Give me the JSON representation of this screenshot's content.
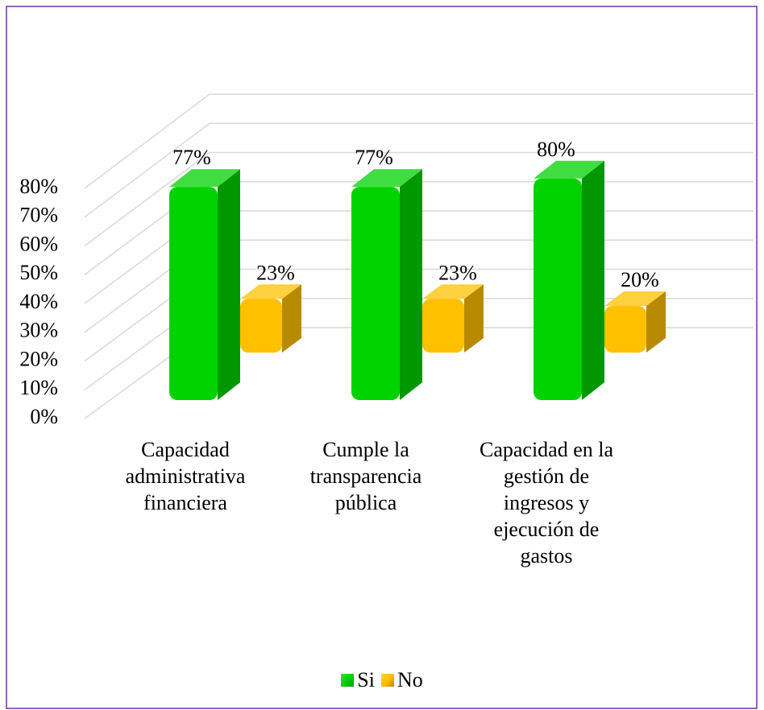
{
  "chart_data": {
    "type": "bar3d",
    "categories": [
      "Capacidad administrativa financiera",
      "Cumple la transparencia pública",
      "Capacidad en la gestión de ingresos y ejecución de gastos"
    ],
    "series": [
      {
        "name": "Si",
        "color": "#00d200",
        "values": [
          77,
          77,
          80
        ],
        "value_labels": [
          "77%",
          "77%",
          "80%"
        ]
      },
      {
        "name": "No",
        "color": "#ffc000",
        "values": [
          23,
          23,
          20
        ],
        "value_labels": [
          "23%",
          "23%",
          "20%"
        ]
      }
    ],
    "ylim": [
      0,
      80
    ],
    "yticks": [
      {
        "value": 0,
        "label": "0%"
      },
      {
        "value": 10,
        "label": "10%"
      },
      {
        "value": 20,
        "label": "20%"
      },
      {
        "value": 30,
        "label": "30%"
      },
      {
        "value": 40,
        "label": "40%"
      },
      {
        "value": 50,
        "label": "50%"
      },
      {
        "value": 60,
        "label": "60%"
      },
      {
        "value": 70,
        "label": "70%"
      },
      {
        "value": 80,
        "label": "80%"
      }
    ],
    "grid": true,
    "legend": "bottom"
  }
}
